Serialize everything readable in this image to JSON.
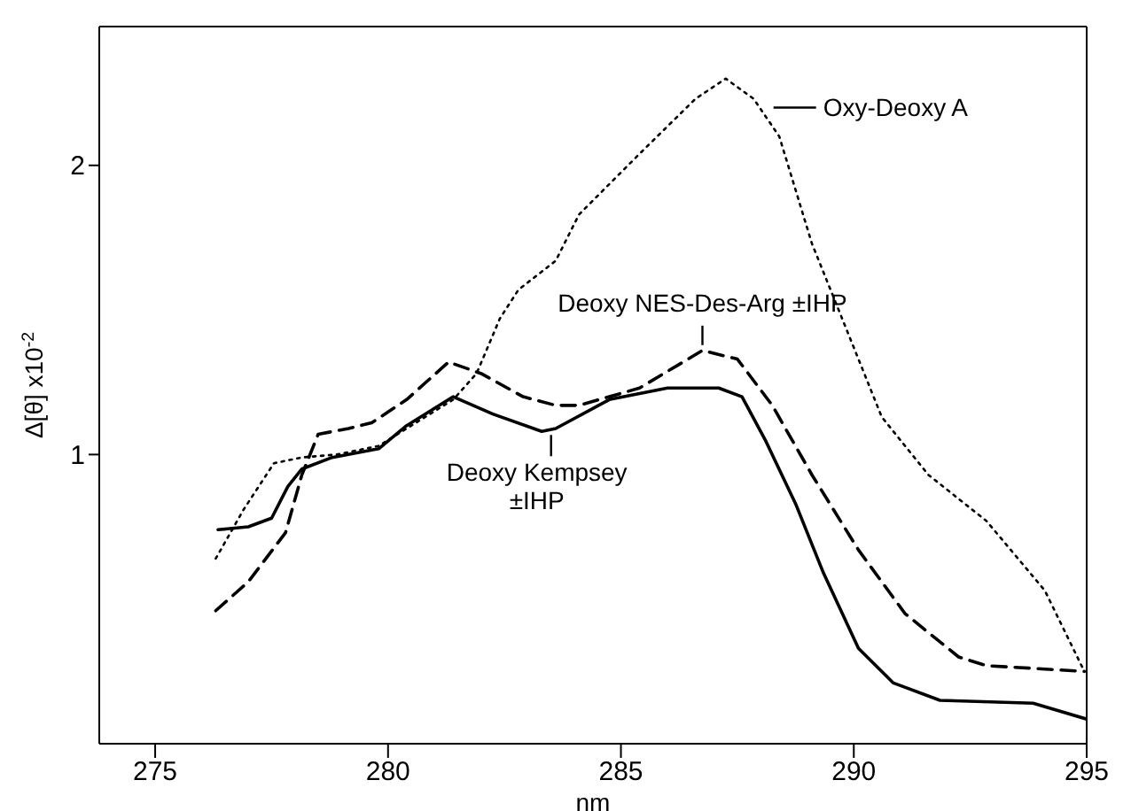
{
  "chart_data": {
    "type": "line",
    "xlabel": "nm",
    "ylabel": "Δ[θ] x10$^{-2}$",
    "xlim": [
      273.8,
      295
    ],
    "xticks": [
      275,
      280,
      285,
      290,
      295
    ],
    "ylim": [
      0,
      2.48
    ],
    "yticks": [
      1,
      2
    ],
    "marker": "none",
    "series": [
      {
        "color": "#000000",
        "line_style": "solid",
        "x": [
          276.35,
          277.0,
          277.5,
          277.85,
          278.15,
          278.8,
          279.8,
          280.4,
          281.4,
          282.25,
          283.3,
          283.6,
          284.75,
          286.0,
          287.1,
          287.6,
          288.1,
          288.75,
          289.35,
          290.1,
          290.85,
          291.85,
          293.85,
          295.0
        ],
        "values": [
          0.74,
          0.75,
          0.78,
          0.89,
          0.95,
          0.99,
          1.02,
          1.1,
          1.2,
          1.14,
          1.08,
          1.09,
          1.19,
          1.23,
          1.23,
          1.2,
          1.05,
          0.83,
          0.59,
          0.33,
          0.21,
          0.15,
          0.14,
          0.085
        ]
      },
      {
        "color": "#000000",
        "line_style": "dashed",
        "x": [
          276.3,
          277.0,
          277.8,
          278.15,
          278.5,
          279.15,
          279.65,
          280.4,
          281.3,
          282.0,
          282.9,
          283.6,
          284.1,
          285.4,
          286.75,
          287.5,
          288.25,
          289.1,
          290.1,
          291.1,
          292.25,
          292.85,
          294.95
        ],
        "values": [
          0.46,
          0.56,
          0.73,
          0.93,
          1.07,
          1.09,
          1.11,
          1.19,
          1.32,
          1.28,
          1.2,
          1.17,
          1.17,
          1.23,
          1.36,
          1.33,
          1.17,
          0.93,
          0.67,
          0.45,
          0.3,
          0.27,
          0.25
        ]
      },
      {
        "color": "#000000",
        "line_style": "dotted",
        "x": [
          276.3,
          276.9,
          277.55,
          278.15,
          278.9,
          279.8,
          280.4,
          281.4,
          281.9,
          282.4,
          282.8,
          283.6,
          284.1,
          285.4,
          286.6,
          287.25,
          287.85,
          288.4,
          289.1,
          289.9,
          290.6,
          291.6,
          292.85,
          294.1,
          294.95
        ],
        "values": [
          0.64,
          0.81,
          0.97,
          0.99,
          1.0,
          1.03,
          1.09,
          1.19,
          1.28,
          1.47,
          1.57,
          1.67,
          1.83,
          2.04,
          2.23,
          2.3,
          2.23,
          2.1,
          1.73,
          1.41,
          1.13,
          0.93,
          0.77,
          0.53,
          0.25
        ]
      }
    ],
    "annotations": [
      {
        "text": "Oxy-Deoxy A",
        "x": 288.2,
        "y": 2.2
      },
      {
        "text": "Deoxy NES-Des-Arg ±IHP",
        "x": 286.75,
        "y": 1.36
      },
      {
        "text": "Deoxy Kempsey\n±IHP",
        "x": 283.5,
        "y": 1.08
      }
    ]
  }
}
